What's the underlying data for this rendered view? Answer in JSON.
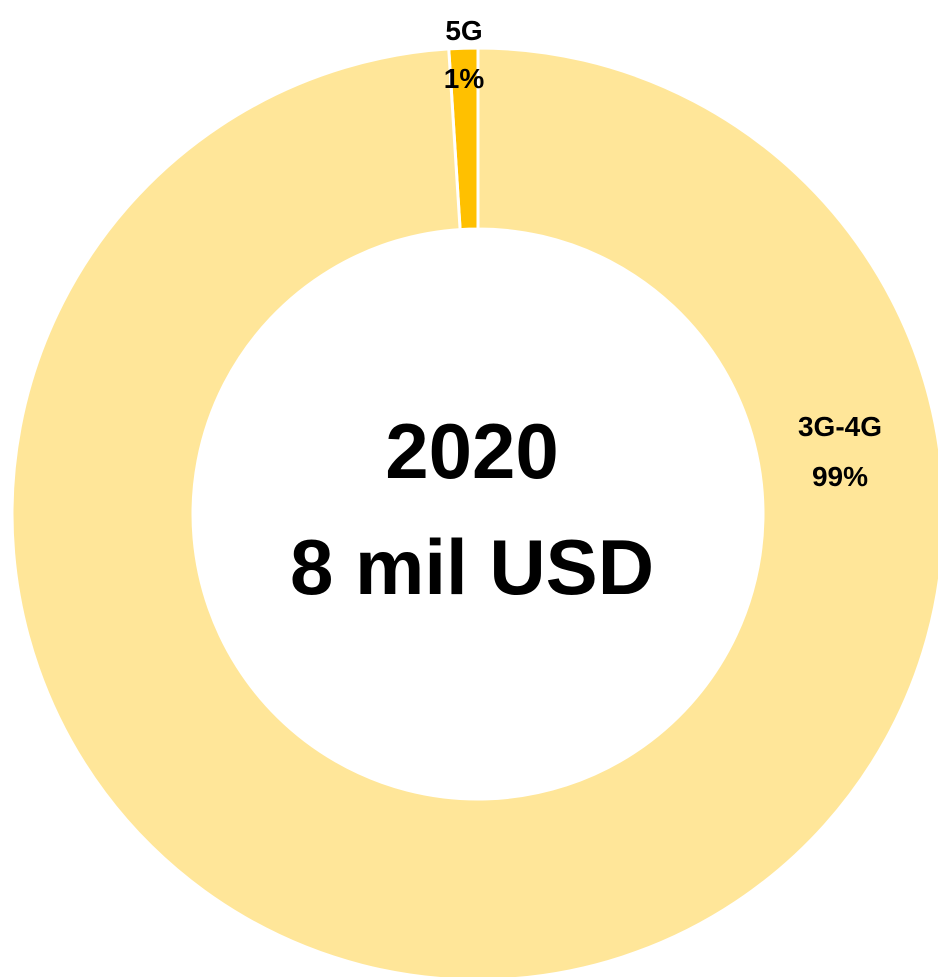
{
  "chart_data": {
    "type": "pie",
    "variant": "donut",
    "center_text": {
      "line1": "2020",
      "line2": "8 mil USD"
    },
    "slices": [
      {
        "name": "5G",
        "value": 1,
        "label": "1%",
        "color": "#FFC000"
      },
      {
        "name": "3G-4G",
        "value": 99,
        "label": "99%",
        "color": "#FFE699"
      }
    ],
    "legend": "none",
    "start_angle": "top",
    "direction": "clockwise"
  }
}
